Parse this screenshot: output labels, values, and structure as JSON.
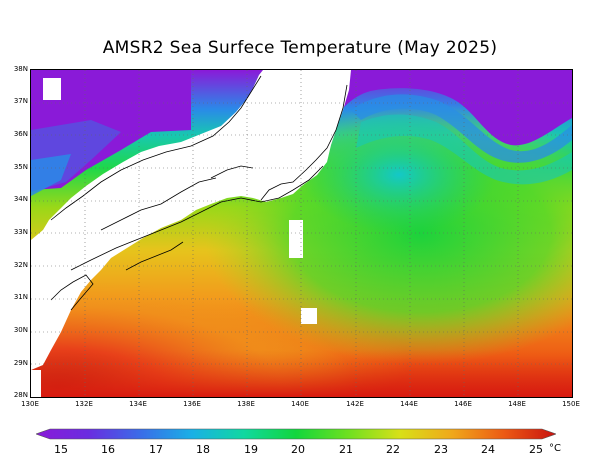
{
  "title": "AMSR2 Sea Surfece Temperature (May 2025)",
  "map": {
    "lat_labels": [
      "38N",
      "37N",
      "36N",
      "35N",
      "34N",
      "33N",
      "32N",
      "31N",
      "30N",
      "29N",
      "28N"
    ],
    "lon_labels": [
      "130E",
      "132E",
      "134E",
      "136E",
      "138E",
      "140E",
      "142E",
      "144E",
      "146E",
      "148E",
      "150E"
    ],
    "lat_range": [
      28,
      38
    ],
    "lon_range": [
      130,
      150
    ]
  },
  "colorbar": {
    "ticks": [
      "15",
      "16",
      "17",
      "18",
      "19",
      "20",
      "21",
      "22",
      "23",
      "24",
      "25"
    ],
    "unit": "°C",
    "colors": [
      "#8a1ad8",
      "#6a2ce0",
      "#3a6ce8",
      "#1ab0e6",
      "#10d8a0",
      "#12d63c",
      "#6ee020",
      "#d8e018",
      "#f0a81a",
      "#ec5a14",
      "#c81210"
    ]
  }
}
